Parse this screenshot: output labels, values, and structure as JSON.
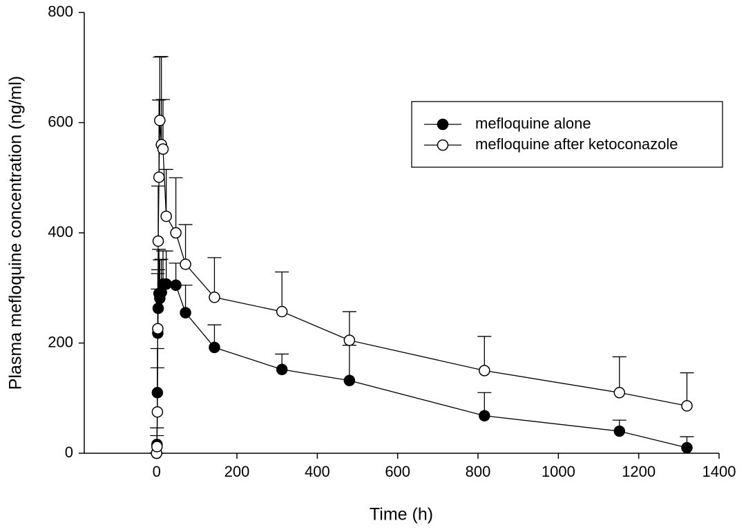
{
  "chart_data": {
    "type": "line",
    "x_label": "Time (h)",
    "y_label": "Plasma mefloquine concentration (ng/ml)",
    "x": [
      0,
      1,
      2,
      3,
      4,
      6,
      8,
      12,
      16,
      24,
      48,
      72,
      144,
      312,
      480,
      816,
      1152,
      1320
    ],
    "series": [
      {
        "name": "mefloquine alone",
        "color": "#000000",
        "marker": "filled",
        "values": [
          0,
          16,
          110,
          218,
          263,
          290,
          281,
          292,
          307,
          307,
          305,
          255,
          192,
          152,
          132,
          68,
          40,
          10
        ],
        "errors": [
          0,
          30,
          80,
          80,
          70,
          80,
          70,
          60,
          60,
          60,
          40,
          50,
          41,
          28,
          64,
          42,
          20,
          20
        ]
      },
      {
        "name": "mefloquine after ketoconazole",
        "color": "#000000",
        "marker": "open",
        "values": [
          0,
          12,
          75,
          226,
          385,
          501,
          604,
          560,
          552,
          430,
          400,
          343,
          283,
          257,
          205,
          150,
          110,
          86
        ],
        "errors": [
          0,
          20,
          80,
          100,
          100,
          140,
          115,
          160,
          90,
          85,
          100,
          72,
          72,
          72,
          52,
          62,
          65,
          60
        ]
      }
    ],
    "xlim": [
      -180,
      1400
    ],
    "xticks": [
      0,
      200,
      400,
      600,
      800,
      1000,
      1200,
      1400
    ],
    "ylim": [
      0,
      800
    ],
    "yticks": [
      0,
      200,
      400,
      600,
      800
    ],
    "grid": false,
    "legend": "upper right"
  }
}
